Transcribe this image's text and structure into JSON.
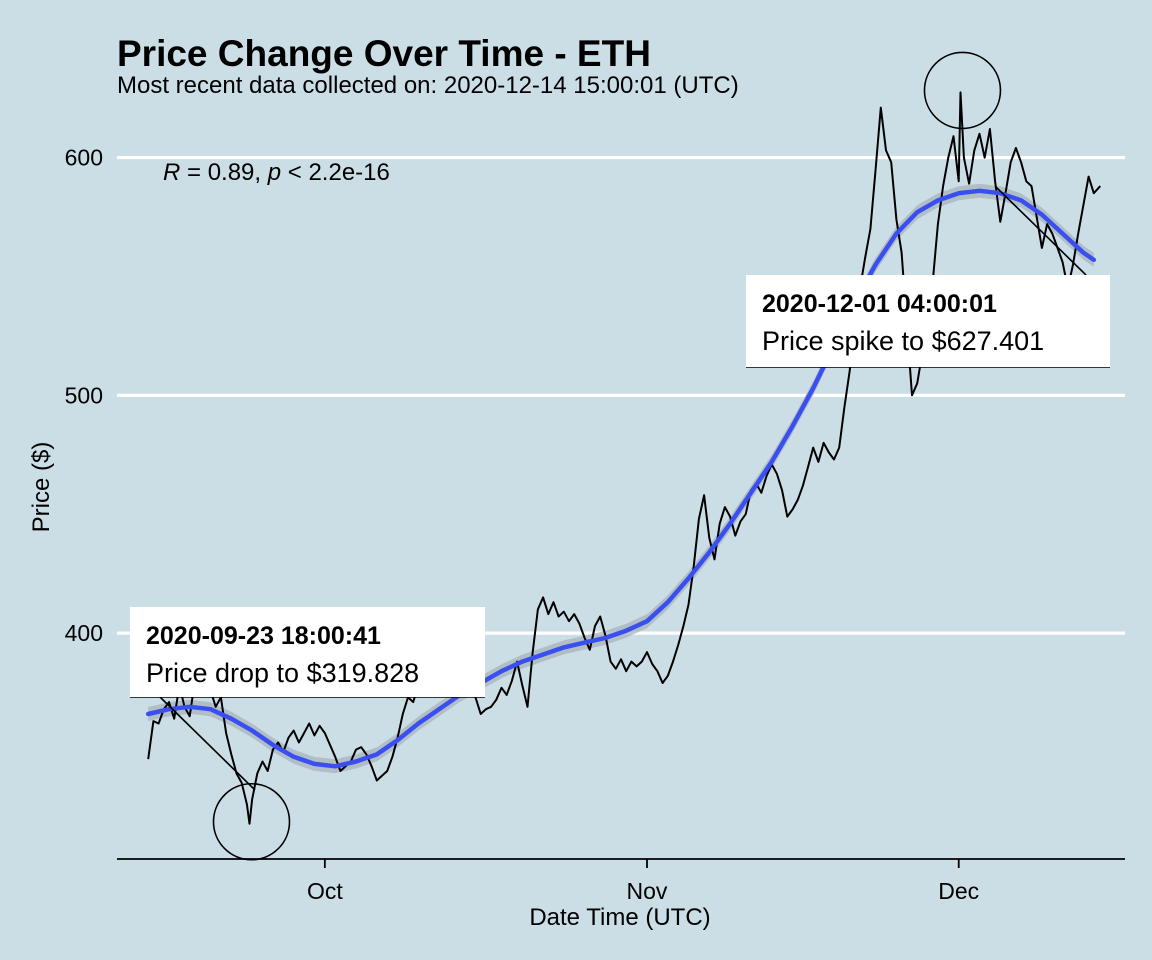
{
  "chart_data": {
    "type": "line",
    "title": "Price Change Over Time - ETH",
    "subtitle": "Most recent data collected on: 2020-12-14 15:00:01 (UTC)",
    "xlabel": "Date Time (UTC)",
    "ylabel": "Price ($)",
    "xlim": [
      "2020-09-11",
      "2020-12-17"
    ],
    "ylim": [
      305,
      620
    ],
    "x_ticks": [
      {
        "date": "2020-10-01",
        "label": "Oct"
      },
      {
        "date": "2020-11-01",
        "label": "Nov"
      },
      {
        "date": "2020-12-01",
        "label": "Dec"
      }
    ],
    "y_ticks": [
      400,
      500,
      600
    ],
    "grid": "horizontal-major",
    "stat_label": {
      "r_symbol": "R",
      "r_text": " = 0.89, ",
      "p_symbol": "p",
      "p_text": " < 2.2e-16"
    },
    "series": [
      {
        "style": "price",
        "color": "#000000",
        "points": [
          [
            "2020-09-14",
            347
          ],
          [
            "2020-09-14T12",
            363
          ],
          [
            "2020-09-15",
            362
          ],
          [
            "2020-09-15T12",
            368
          ],
          [
            "2020-09-16",
            371
          ],
          [
            "2020-09-16T12",
            364
          ],
          [
            "2020-09-17",
            378
          ],
          [
            "2020-09-17T12",
            369
          ],
          [
            "2020-09-18",
            365
          ],
          [
            "2020-09-18T12",
            380
          ],
          [
            "2020-09-19",
            374
          ],
          [
            "2020-09-19T12",
            383
          ],
          [
            "2020-09-20",
            376
          ],
          [
            "2020-09-20T12",
            369
          ],
          [
            "2020-09-21",
            373
          ],
          [
            "2020-09-21T12",
            358
          ],
          [
            "2020-09-22",
            349
          ],
          [
            "2020-09-22T12",
            341
          ],
          [
            "2020-09-23",
            337
          ],
          [
            "2020-09-23T12",
            328
          ],
          [
            "2020-09-23T18",
            319.828
          ],
          [
            "2020-09-24",
            330
          ],
          [
            "2020-09-24T12",
            341
          ],
          [
            "2020-09-25",
            346
          ],
          [
            "2020-09-25T12",
            342
          ],
          [
            "2020-09-26",
            351
          ],
          [
            "2020-09-26T12",
            354
          ],
          [
            "2020-09-27",
            350
          ],
          [
            "2020-09-27T12",
            356
          ],
          [
            "2020-09-28",
            359
          ],
          [
            "2020-09-28T12",
            354
          ],
          [
            "2020-09-29",
            358
          ],
          [
            "2020-09-29T12",
            362
          ],
          [
            "2020-09-30",
            357
          ],
          [
            "2020-09-30T12",
            361
          ],
          [
            "2020-10-01",
            358
          ],
          [
            "2020-10-01T12",
            353
          ],
          [
            "2020-10-02",
            348
          ],
          [
            "2020-10-02T12",
            342
          ],
          [
            "2020-10-03",
            344
          ],
          [
            "2020-10-03T12",
            346
          ],
          [
            "2020-10-04",
            351
          ],
          [
            "2020-10-04T12",
            352
          ],
          [
            "2020-10-05",
            349
          ],
          [
            "2020-10-05T12",
            344
          ],
          [
            "2020-10-06",
            338
          ],
          [
            "2020-10-06T12",
            340
          ],
          [
            "2020-10-07",
            342
          ],
          [
            "2020-10-07T12",
            348
          ],
          [
            "2020-10-08",
            356
          ],
          [
            "2020-10-08T12",
            366
          ],
          [
            "2020-10-09",
            373
          ],
          [
            "2020-10-09T12",
            371
          ],
          [
            "2020-10-10",
            378
          ],
          [
            "2020-10-10T12",
            375
          ],
          [
            "2020-10-11",
            374
          ],
          [
            "2020-10-11T12",
            378
          ],
          [
            "2020-10-12",
            384
          ],
          [
            "2020-10-12T12",
            378
          ],
          [
            "2020-10-13",
            382
          ],
          [
            "2020-10-13T12",
            376
          ],
          [
            "2020-10-14",
            380
          ],
          [
            "2020-10-14T12",
            376
          ],
          [
            "2020-10-15",
            379
          ],
          [
            "2020-10-15T12",
            373
          ],
          [
            "2020-10-16",
            366
          ],
          [
            "2020-10-16T12",
            368
          ],
          [
            "2020-10-17",
            369
          ],
          [
            "2020-10-17T12",
            372
          ],
          [
            "2020-10-18",
            377
          ],
          [
            "2020-10-18T12",
            374
          ],
          [
            "2020-10-19",
            380
          ],
          [
            "2020-10-19T12",
            388
          ],
          [
            "2020-10-20",
            378
          ],
          [
            "2020-10-20T12",
            369
          ],
          [
            "2020-10-21",
            392
          ],
          [
            "2020-10-21T12",
            410
          ],
          [
            "2020-10-22",
            415
          ],
          [
            "2020-10-22T12",
            408
          ],
          [
            "2020-10-23",
            413
          ],
          [
            "2020-10-23T12",
            407
          ],
          [
            "2020-10-24",
            409
          ],
          [
            "2020-10-24T12",
            405
          ],
          [
            "2020-10-25",
            408
          ],
          [
            "2020-10-25T12",
            404
          ],
          [
            "2020-10-26",
            398
          ],
          [
            "2020-10-26T12",
            393
          ],
          [
            "2020-10-27",
            403
          ],
          [
            "2020-10-27T12",
            407
          ],
          [
            "2020-10-28",
            399
          ],
          [
            "2020-10-28T12",
            388
          ],
          [
            "2020-10-29",
            385
          ],
          [
            "2020-10-29T12",
            389
          ],
          [
            "2020-10-30",
            384
          ],
          [
            "2020-10-30T12",
            388
          ],
          [
            "2020-10-31",
            386
          ],
          [
            "2020-10-31T12",
            388
          ],
          [
            "2020-11-01",
            392
          ],
          [
            "2020-11-01T12",
            387
          ],
          [
            "2020-11-02",
            384
          ],
          [
            "2020-11-02T12",
            379
          ],
          [
            "2020-11-03",
            382
          ],
          [
            "2020-11-03T12",
            388
          ],
          [
            "2020-11-04",
            395
          ],
          [
            "2020-11-04T12",
            403
          ],
          [
            "2020-11-05",
            412
          ],
          [
            "2020-11-05T12",
            428
          ],
          [
            "2020-11-06",
            448
          ],
          [
            "2020-11-06T12",
            458
          ],
          [
            "2020-11-07",
            440
          ],
          [
            "2020-11-07T12",
            431
          ],
          [
            "2020-11-08",
            446
          ],
          [
            "2020-11-08T12",
            453
          ],
          [
            "2020-11-09",
            449
          ],
          [
            "2020-11-09T12",
            441
          ],
          [
            "2020-11-10",
            447
          ],
          [
            "2020-11-10T12",
            450
          ],
          [
            "2020-11-11",
            460
          ],
          [
            "2020-11-11T12",
            463
          ],
          [
            "2020-11-12",
            459
          ],
          [
            "2020-11-12T12",
            466
          ],
          [
            "2020-11-13",
            471
          ],
          [
            "2020-11-13T12",
            467
          ],
          [
            "2020-11-14",
            460
          ],
          [
            "2020-11-14T12",
            449
          ],
          [
            "2020-11-15",
            452
          ],
          [
            "2020-11-15T12",
            456
          ],
          [
            "2020-11-16",
            462
          ],
          [
            "2020-11-16T12",
            470
          ],
          [
            "2020-11-17",
            478
          ],
          [
            "2020-11-17T12",
            472
          ],
          [
            "2020-11-18",
            480
          ],
          [
            "2020-11-18T12",
            476
          ],
          [
            "2020-11-19",
            473
          ],
          [
            "2020-11-19T12",
            478
          ],
          [
            "2020-11-20",
            495
          ],
          [
            "2020-11-20T12",
            510
          ],
          [
            "2020-11-21",
            530
          ],
          [
            "2020-11-21T12",
            545
          ],
          [
            "2020-11-22",
            558
          ],
          [
            "2020-11-22T12",
            570
          ],
          [
            "2020-11-23",
            595
          ],
          [
            "2020-11-23T12",
            621
          ],
          [
            "2020-11-24",
            603
          ],
          [
            "2020-11-24T12",
            598
          ],
          [
            "2020-11-25",
            574
          ],
          [
            "2020-11-25T12",
            560
          ],
          [
            "2020-11-26",
            530
          ],
          [
            "2020-11-26T12",
            500
          ],
          [
            "2020-11-27",
            505
          ],
          [
            "2020-11-27T12",
            518
          ],
          [
            "2020-11-28",
            530
          ],
          [
            "2020-11-28T12",
            548
          ],
          [
            "2020-11-29",
            572
          ],
          [
            "2020-11-29T12",
            588
          ],
          [
            "2020-11-30",
            600
          ],
          [
            "2020-11-30T12",
            609
          ],
          [
            "2020-12-01",
            590
          ],
          [
            "2020-12-01T04",
            627.401
          ],
          [
            "2020-12-01T12",
            600
          ],
          [
            "2020-12-02",
            589
          ],
          [
            "2020-12-02T12",
            603
          ],
          [
            "2020-12-03",
            610
          ],
          [
            "2020-12-03T12",
            600
          ],
          [
            "2020-12-04",
            612
          ],
          [
            "2020-12-04T12",
            590
          ],
          [
            "2020-12-05",
            573
          ],
          [
            "2020-12-05T12",
            585
          ],
          [
            "2020-12-06",
            598
          ],
          [
            "2020-12-06T12",
            604
          ],
          [
            "2020-12-07",
            598
          ],
          [
            "2020-12-07T12",
            590
          ],
          [
            "2020-12-08",
            588
          ],
          [
            "2020-12-08T12",
            575
          ],
          [
            "2020-12-09",
            562
          ],
          [
            "2020-12-09T12",
            572
          ],
          [
            "2020-12-10",
            568
          ],
          [
            "2020-12-10T12",
            562
          ],
          [
            "2020-12-11",
            556
          ],
          [
            "2020-12-11T12",
            545
          ],
          [
            "2020-12-12",
            555
          ],
          [
            "2020-12-12T12",
            568
          ],
          [
            "2020-12-13",
            580
          ],
          [
            "2020-12-13T12",
            592
          ],
          [
            "2020-12-14",
            585
          ],
          [
            "2020-12-14T15",
            588
          ]
        ]
      },
      {
        "style": "smooth",
        "color": "#3a4ff0",
        "points": [
          [
            "2020-09-14",
            366
          ],
          [
            "2020-09-16",
            368
          ],
          [
            "2020-09-18",
            369
          ],
          [
            "2020-09-20",
            368
          ],
          [
            "2020-09-22",
            364
          ],
          [
            "2020-09-24",
            359
          ],
          [
            "2020-09-26",
            353
          ],
          [
            "2020-09-28",
            348
          ],
          [
            "2020-09-30",
            345
          ],
          [
            "2020-10-02",
            344
          ],
          [
            "2020-10-04",
            346
          ],
          [
            "2020-10-06",
            349
          ],
          [
            "2020-10-08",
            355
          ],
          [
            "2020-10-10",
            362
          ],
          [
            "2020-10-12",
            368
          ],
          [
            "2020-10-14",
            374
          ],
          [
            "2020-10-16",
            379
          ],
          [
            "2020-10-18",
            384
          ],
          [
            "2020-10-20",
            388
          ],
          [
            "2020-10-22",
            391
          ],
          [
            "2020-10-24",
            394
          ],
          [
            "2020-10-26",
            396
          ],
          [
            "2020-10-28",
            398
          ],
          [
            "2020-10-30",
            401
          ],
          [
            "2020-11-01",
            405
          ],
          [
            "2020-11-03",
            413
          ],
          [
            "2020-11-05",
            423
          ],
          [
            "2020-11-07",
            434
          ],
          [
            "2020-11-09",
            446
          ],
          [
            "2020-11-11",
            459
          ],
          [
            "2020-11-13",
            472
          ],
          [
            "2020-11-15",
            487
          ],
          [
            "2020-11-17",
            503
          ],
          [
            "2020-11-19",
            521
          ],
          [
            "2020-11-21",
            539
          ],
          [
            "2020-11-23",
            555
          ],
          [
            "2020-11-25",
            568
          ],
          [
            "2020-11-27",
            577
          ],
          [
            "2020-11-29",
            582
          ],
          [
            "2020-12-01",
            585
          ],
          [
            "2020-12-03",
            586
          ],
          [
            "2020-12-05",
            585
          ],
          [
            "2020-12-07",
            582
          ],
          [
            "2020-12-09",
            576
          ],
          [
            "2020-12-11",
            568
          ],
          [
            "2020-12-13",
            560
          ],
          [
            "2020-12-14",
            557
          ]
        ]
      }
    ],
    "annotations": [
      {
        "date": "2020-09-23T18",
        "value": 319.828,
        "title": "2020-09-23 18:00:41",
        "text": "Price drop to $319.828"
      },
      {
        "date": "2020-12-01T04",
        "value": 627.401,
        "title": "2020-12-01 04:00:01",
        "text": "Price spike to $627.401"
      }
    ]
  }
}
